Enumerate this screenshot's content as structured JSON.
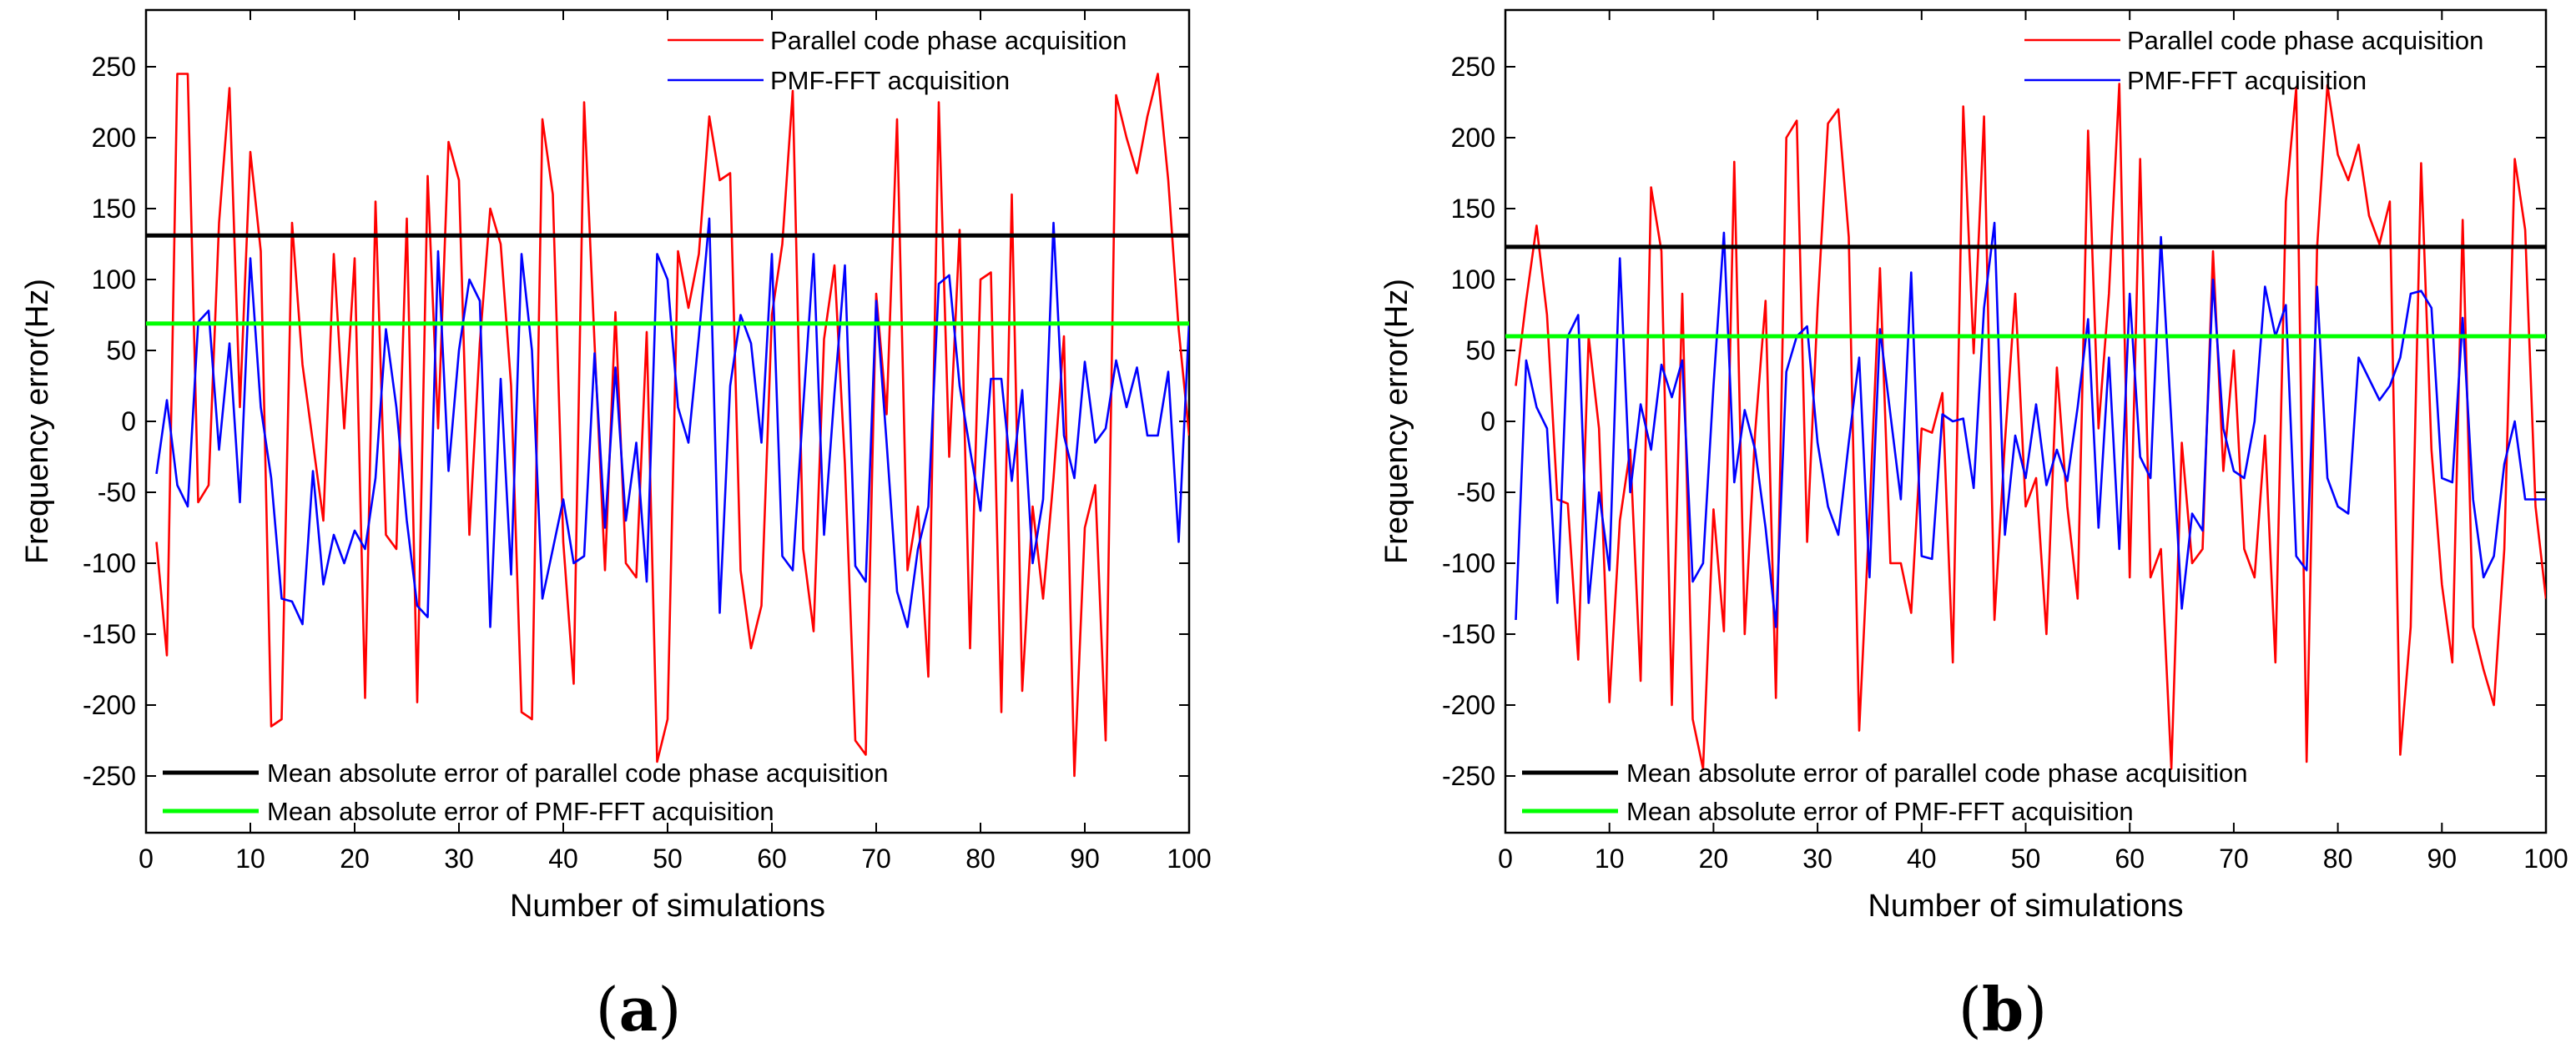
{
  "chart_data": [
    {
      "type": "line",
      "panel_label": "a",
      "xlabel": "Number of simulations",
      "ylabel": "Frequency error(Hz)",
      "xlim": [
        0,
        100
      ],
      "ylim": [
        -290,
        290
      ],
      "xticks": [
        0,
        10,
        20,
        30,
        40,
        50,
        60,
        70,
        80,
        90,
        100
      ],
      "yticks": [
        -250,
        -200,
        -150,
        -100,
        -50,
        0,
        50,
        100,
        150,
        200,
        250
      ],
      "series": [
        {
          "name": "Parallel code phase acquisition",
          "color": "#ff0000",
          "x": [
            1,
            2,
            3,
            4,
            5,
            6,
            7,
            8,
            9,
            10,
            11,
            12,
            13,
            14,
            15,
            16,
            17,
            18,
            19,
            20,
            21,
            22,
            23,
            24,
            25,
            26,
            27,
            28,
            29,
            30,
            31,
            32,
            33,
            34,
            35,
            36,
            37,
            38,
            39,
            40,
            41,
            42,
            43,
            44,
            45,
            46,
            47,
            48,
            49,
            50,
            51,
            52,
            53,
            54,
            55,
            56,
            57,
            58,
            59,
            60,
            61,
            62,
            63,
            64,
            65,
            66,
            67,
            68,
            69,
            70,
            71,
            72,
            73,
            74,
            75,
            76,
            77,
            78,
            79,
            80,
            81,
            82,
            83,
            84,
            85,
            86,
            87,
            88,
            89,
            90,
            91,
            92,
            93,
            94,
            95,
            96,
            97,
            98,
            99,
            100
          ],
          "values": [
            -85,
            -165,
            245,
            245,
            -57,
            -45,
            140,
            235,
            10,
            190,
            120,
            -215,
            -210,
            140,
            40,
            -15,
            -70,
            118,
            -5,
            115,
            -195,
            155,
            -80,
            -90,
            143,
            -198,
            173,
            -5,
            197,
            170,
            -80,
            55,
            150,
            125,
            25,
            -205,
            -210,
            213,
            160,
            -85,
            -185,
            225,
            55,
            -105,
            77,
            -100,
            -110,
            63,
            -240,
            -210,
            120,
            80,
            118,
            215,
            170,
            175,
            -105,
            -160,
            -130,
            75,
            125,
            233,
            -90,
            -148,
            58,
            110,
            -30,
            -225,
            -235,
            90,
            5,
            213,
            -105,
            -60,
            -180,
            225,
            -25,
            135,
            -160,
            100,
            105,
            -205,
            160,
            -190,
            -60,
            -125,
            -40,
            60,
            -250,
            -75,
            -45,
            -225,
            230,
            200,
            175,
            215,
            245,
            170,
            65,
            -10
          ]
        },
        {
          "name": "PMF-FFT acquisition",
          "color": "#0000ff",
          "x": [
            1,
            2,
            3,
            4,
            5,
            6,
            7,
            8,
            9,
            10,
            11,
            12,
            13,
            14,
            15,
            16,
            17,
            18,
            19,
            20,
            21,
            22,
            23,
            24,
            25,
            26,
            27,
            28,
            29,
            30,
            31,
            32,
            33,
            34,
            35,
            36,
            37,
            38,
            39,
            40,
            41,
            42,
            43,
            44,
            45,
            46,
            47,
            48,
            49,
            50,
            51,
            52,
            53,
            54,
            55,
            56,
            57,
            58,
            59,
            60,
            61,
            62,
            63,
            64,
            65,
            66,
            67,
            68,
            69,
            70,
            71,
            72,
            73,
            74,
            75,
            76,
            77,
            78,
            79,
            80,
            81,
            82,
            83,
            84,
            85,
            86,
            87,
            88,
            89,
            90,
            91,
            92,
            93,
            94,
            95,
            96,
            97,
            98,
            99,
            100
          ],
          "values": [
            -37,
            15,
            -45,
            -60,
            70,
            78,
            -20,
            55,
            -57,
            115,
            10,
            -40,
            -125,
            -127,
            -143,
            -35,
            -115,
            -80,
            -100,
            -77,
            -90,
            -40,
            65,
            10,
            -70,
            -130,
            -138,
            120,
            -35,
            50,
            100,
            85,
            -145,
            30,
            -108,
            118,
            50,
            -125,
            -90,
            -55,
            -100,
            -95,
            48,
            -75,
            38,
            -70,
            -15,
            -113,
            118,
            100,
            10,
            -15,
            60,
            143,
            -135,
            25,
            75,
            55,
            -15,
            118,
            -95,
            -105,
            10,
            118,
            -80,
            20,
            110,
            -102,
            -113,
            85,
            -15,
            -120,
            -145,
            -90,
            -60,
            97,
            103,
            25,
            -20,
            -63,
            30,
            30,
            -42,
            22,
            -100,
            -55,
            140,
            -10,
            -40,
            42,
            -15,
            -5,
            43,
            10,
            38,
            -10,
            -10,
            35,
            -85,
            70
          ]
        },
        {
          "name": "Mean absolute error of parallel code phase acquisition",
          "color": "#000000",
          "x": [
            0,
            100
          ],
          "values": [
            131,
            131
          ]
        },
        {
          "name": "Mean absolute error of PMF-FFT acquisition",
          "color": "#00ff00",
          "x": [
            0,
            100
          ],
          "values": [
            69,
            69
          ]
        }
      ]
    },
    {
      "type": "line",
      "panel_label": "b",
      "xlabel": "Number of simulations",
      "ylabel": "Frequency error(Hz)",
      "xlim": [
        0,
        100
      ],
      "ylim": [
        -290,
        290
      ],
      "xticks": [
        0,
        10,
        20,
        30,
        40,
        50,
        60,
        70,
        80,
        90,
        100
      ],
      "yticks": [
        -250,
        -200,
        -150,
        -100,
        -50,
        0,
        50,
        100,
        150,
        200,
        250
      ],
      "series": [
        {
          "name": "Parallel code phase acquisition",
          "color": "#ff0000",
          "x": [
            1,
            2,
            3,
            4,
            5,
            6,
            7,
            8,
            9,
            10,
            11,
            12,
            13,
            14,
            15,
            16,
            17,
            18,
            19,
            20,
            21,
            22,
            23,
            24,
            25,
            26,
            27,
            28,
            29,
            30,
            31,
            32,
            33,
            34,
            35,
            36,
            37,
            38,
            39,
            40,
            41,
            42,
            43,
            44,
            45,
            46,
            47,
            48,
            49,
            50,
            51,
            52,
            53,
            54,
            55,
            56,
            57,
            58,
            59,
            60,
            61,
            62,
            63,
            64,
            65,
            66,
            67,
            68,
            69,
            70,
            71,
            72,
            73,
            74,
            75,
            76,
            77,
            78,
            79,
            80,
            81,
            82,
            83,
            84,
            85,
            86,
            87,
            88,
            89,
            90,
            91,
            92,
            93,
            94,
            95,
            96,
            97,
            98,
            99,
            100
          ],
          "values": [
            25,
            85,
            138,
            75,
            -55,
            -58,
            -168,
            60,
            -5,
            -198,
            -70,
            -20,
            -183,
            165,
            120,
            -200,
            90,
            -210,
            -245,
            -62,
            -148,
            183,
            -150,
            -8,
            85,
            -195,
            200,
            212,
            -85,
            80,
            210,
            220,
            130,
            -218,
            -65,
            108,
            -100,
            -100,
            -135,
            -5,
            -8,
            20,
            -170,
            222,
            48,
            215,
            -140,
            -15,
            90,
            -60,
            -40,
            -150,
            38,
            -60,
            -125,
            205,
            -5,
            90,
            238,
            -110,
            185,
            -110,
            -90,
            -245,
            -15,
            -100,
            -90,
            120,
            -35,
            50,
            -90,
            -110,
            -10,
            -170,
            155,
            235,
            -240,
            122,
            237,
            188,
            170,
            195,
            145,
            125,
            155,
            -235,
            -145,
            182,
            -20,
            -115,
            -170,
            142,
            -145,
            -175,
            -200,
            -90,
            185,
            135,
            -60,
            -125
          ]
        },
        {
          "name": "PMF-FFT acquisition",
          "color": "#0000ff",
          "x": [
            1,
            2,
            3,
            4,
            5,
            6,
            7,
            8,
            9,
            10,
            11,
            12,
            13,
            14,
            15,
            16,
            17,
            18,
            19,
            20,
            21,
            22,
            23,
            24,
            25,
            26,
            27,
            28,
            29,
            30,
            31,
            32,
            33,
            34,
            35,
            36,
            37,
            38,
            39,
            40,
            41,
            42,
            43,
            44,
            45,
            46,
            47,
            48,
            49,
            50,
            51,
            52,
            53,
            54,
            55,
            56,
            57,
            58,
            59,
            60,
            61,
            62,
            63,
            64,
            65,
            66,
            67,
            68,
            69,
            70,
            71,
            72,
            73,
            74,
            75,
            76,
            77,
            78,
            79,
            80,
            81,
            82,
            83,
            84,
            85,
            86,
            87,
            88,
            89,
            90,
            91,
            92,
            93,
            94,
            95,
            96,
            97,
            98,
            99,
            100
          ],
          "values": [
            -140,
            43,
            10,
            -5,
            -128,
            60,
            75,
            -128,
            -50,
            -105,
            115,
            -50,
            12,
            -20,
            40,
            17,
            43,
            -113,
            -100,
            25,
            133,
            -43,
            8,
            -20,
            -75,
            -145,
            35,
            60,
            67,
            -15,
            -60,
            -80,
            -15,
            45,
            -110,
            65,
            5,
            -55,
            105,
            -95,
            -97,
            5,
            0,
            2,
            -47,
            80,
            140,
            -80,
            -10,
            -40,
            12,
            -45,
            -20,
            -42,
            10,
            72,
            -75,
            45,
            -90,
            90,
            -25,
            -40,
            130,
            0,
            -132,
            -65,
            -77,
            100,
            -5,
            -35,
            -40,
            0,
            95,
            60,
            82,
            -95,
            -105,
            95,
            -40,
            -60,
            -65,
            45,
            30,
            15,
            25,
            45,
            90,
            92,
            80,
            -40,
            -43,
            73,
            -55,
            -110,
            -95,
            -30,
            0,
            -55,
            -55,
            -55
          ]
        },
        {
          "name": "Mean absolute error of parallel code phase acquisition",
          "color": "#000000",
          "x": [
            0,
            100
          ],
          "values": [
            123,
            123
          ]
        },
        {
          "name": "Mean absolute error of PMF-FFT acquisition",
          "color": "#00ff00",
          "x": [
            0,
            100
          ],
          "values": [
            60,
            60
          ]
        }
      ]
    }
  ]
}
